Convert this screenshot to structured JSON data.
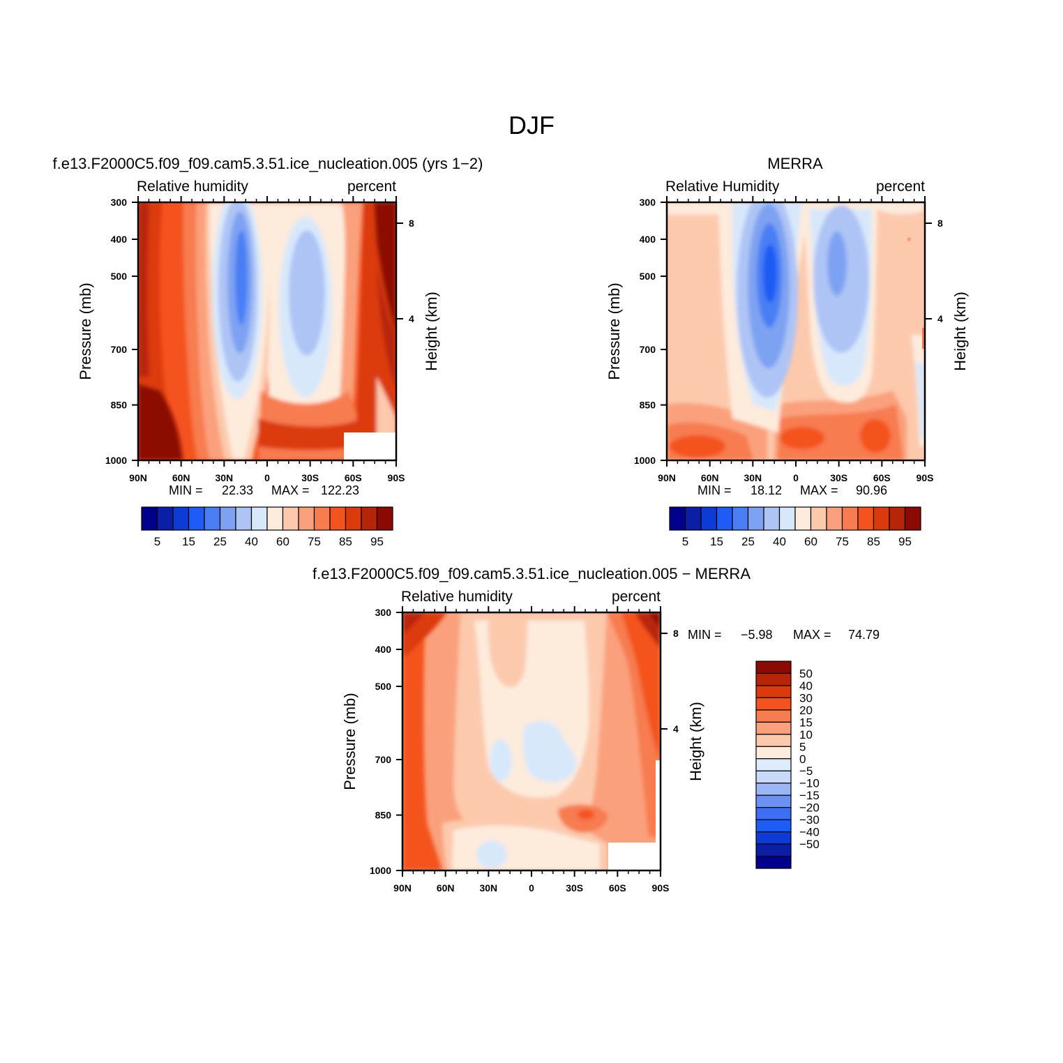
{
  "figure": {
    "title": "DJF"
  },
  "colors": {
    "cb_rh": [
      "#00008c",
      "#0a1fa6",
      "#0d3bd6",
      "#1e5cf5",
      "#4a7ef5",
      "#7ea2f2",
      "#aec4f5",
      "#d8e8fb",
      "#fdebdc",
      "#fcc9ad",
      "#faa07c",
      "#f77c4f",
      "#f4521e",
      "#db3a0c",
      "#b72508",
      "#8c0a04"
    ],
    "cb_diff": [
      "#00008c",
      "#0a1fa6",
      "#0d3bd6",
      "#1e5cf5",
      "#3d6ff5",
      "#6a91f3",
      "#9ab6f4",
      "#c7daf9",
      "#ddecfc",
      "#fdebdc",
      "#fcc9ad",
      "#faa07c",
      "#f77c4f",
      "#f4521e",
      "#db3a0c",
      "#b72508",
      "#8c0a04"
    ]
  },
  "chart_data": [
    {
      "type": "heatmap",
      "id": "model",
      "title": "f.e13.F2000C5.f09_f09.cam5.3.51.ice_nucleation.005 (yrs 1−2)",
      "left_label": "Relative humidity",
      "right_label": "percent",
      "ylabel": "Pressure (mb)",
      "y2label": "Height (km)",
      "x_ticks": [
        "90N",
        "60N",
        "30N",
        "0",
        "30S",
        "60S",
        "90S"
      ],
      "y_ticks": [
        "300",
        "400",
        "500",
        "700",
        "850",
        "1000"
      ],
      "y2_ticks": [
        "8",
        "4"
      ],
      "min_label": "MIN =",
      "min_value": "22.33",
      "max_label": "MAX =",
      "max_value": "122.23",
      "colorbar_labels": [
        "5",
        "15",
        "25",
        "40",
        "60",
        "75",
        "85",
        "95"
      ]
    },
    {
      "type": "heatmap",
      "id": "obs",
      "title": "MERRA",
      "left_label": "Relative Humidity",
      "right_label": "percent",
      "ylabel": "Pressure (mb)",
      "y2label": "Height (km)",
      "x_ticks": [
        "90N",
        "60N",
        "30N",
        "0",
        "30S",
        "60S",
        "90S"
      ],
      "y_ticks": [
        "300",
        "400",
        "500",
        "700",
        "850",
        "1000"
      ],
      "y2_ticks": [
        "8",
        "4"
      ],
      "min_label": "MIN =",
      "min_value": "18.12",
      "max_label": "MAX =",
      "max_value": "90.96",
      "colorbar_labels": [
        "5",
        "15",
        "25",
        "40",
        "60",
        "75",
        "85",
        "95"
      ]
    },
    {
      "type": "heatmap",
      "id": "diff",
      "title": "f.e13.F2000C5.f09_f09.cam5.3.51.ice_nucleation.005 − MERRA",
      "left_label": "Relative humidity",
      "right_label": "percent",
      "ylabel": "Pressure (mb)",
      "y2label": "Height (km)",
      "x_ticks": [
        "90N",
        "60N",
        "30N",
        "0",
        "30S",
        "60S",
        "90S"
      ],
      "y_ticks": [
        "300",
        "400",
        "500",
        "700",
        "850",
        "1000"
      ],
      "y2_ticks": [
        "8",
        "4"
      ],
      "min_label": "MIN =",
      "min_value": "−5.98",
      "max_label": "MAX =",
      "max_value": "74.79",
      "colorbar_labels": [
        "50",
        "40",
        "30",
        "20",
        "15",
        "10",
        "5",
        "0",
        "−5",
        "−10",
        "−15",
        "−20",
        "−30",
        "−40",
        "−50"
      ]
    }
  ]
}
